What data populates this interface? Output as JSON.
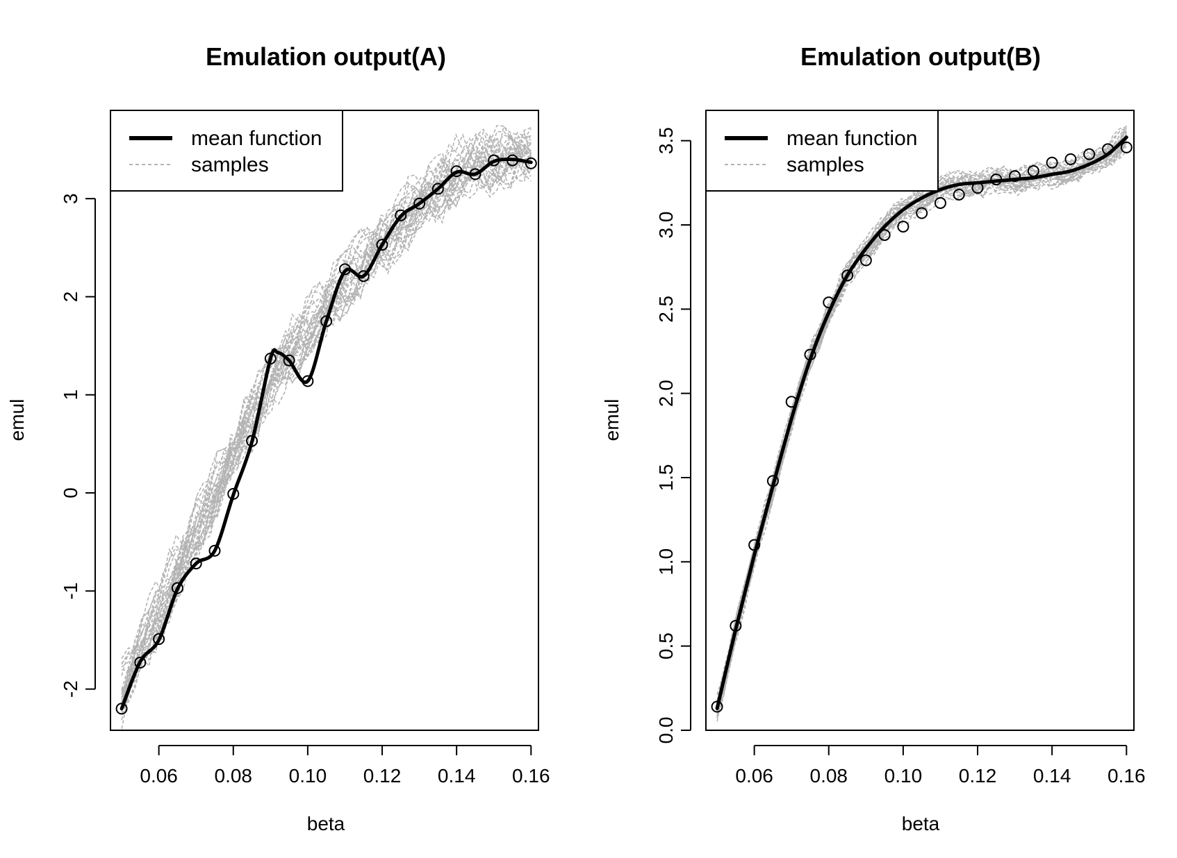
{
  "chart_data": [
    {
      "type": "line",
      "title": "Emulation output(A)",
      "xlabel": "beta",
      "ylabel": "emul",
      "xlim": [
        0.047,
        0.162
      ],
      "ylim": [
        -2.42,
        3.9
      ],
      "x_ticks": [
        0.06,
        0.08,
        0.1,
        0.12,
        0.14,
        0.16
      ],
      "x_tick_labels": [
        "0.06",
        "0.08",
        "0.10",
        "0.12",
        "0.14",
        "0.16"
      ],
      "y_ticks": [
        -2,
        -1,
        0,
        1,
        2,
        3
      ],
      "y_tick_labels": [
        "-2",
        "-1",
        "0",
        "1",
        "2",
        "3"
      ],
      "legend": {
        "position": "top-left",
        "entries": [
          {
            "label": "mean function",
            "style": "solid",
            "color": "#000000"
          },
          {
            "label": "samples",
            "style": "dashed",
            "color": "#b3b3b3"
          }
        ]
      },
      "mean_function": {
        "x": [
          0.05,
          0.055,
          0.06,
          0.065,
          0.07,
          0.075,
          0.08,
          0.085,
          0.09,
          0.092,
          0.095,
          0.1,
          0.105,
          0.11,
          0.115,
          0.12,
          0.125,
          0.13,
          0.135,
          0.14,
          0.145,
          0.15,
          0.155,
          0.16
        ],
        "y": [
          -2.2,
          -1.72,
          -1.5,
          -0.98,
          -0.72,
          -0.59,
          -0.02,
          0.52,
          1.37,
          1.43,
          1.35,
          1.14,
          1.75,
          2.26,
          2.21,
          2.53,
          2.82,
          2.95,
          3.1,
          3.27,
          3.25,
          3.38,
          3.4,
          3.37
        ]
      },
      "observations": {
        "x": [
          0.05,
          0.055,
          0.06,
          0.065,
          0.07,
          0.075,
          0.08,
          0.085,
          0.09,
          0.095,
          0.1,
          0.105,
          0.11,
          0.115,
          0.12,
          0.125,
          0.13,
          0.135,
          0.14,
          0.145,
          0.15,
          0.155,
          0.16
        ],
        "y": [
          -2.2,
          -1.73,
          -1.49,
          -0.97,
          -0.72,
          -0.59,
          -0.01,
          0.53,
          1.37,
          1.35,
          1.14,
          1.75,
          2.28,
          2.21,
          2.53,
          2.83,
          2.95,
          3.1,
          3.28,
          3.25,
          3.39,
          3.39,
          3.36
        ]
      },
      "samples": {
        "count": 30,
        "center_x": [
          0.05,
          0.055,
          0.06,
          0.065,
          0.07,
          0.075,
          0.08,
          0.085,
          0.09,
          0.095,
          0.1,
          0.105,
          0.11,
          0.115,
          0.12,
          0.125,
          0.13,
          0.135,
          0.14,
          0.145,
          0.15,
          0.155,
          0.16
        ],
        "center_y": [
          -2.05,
          -1.6,
          -1.2,
          -0.8,
          -0.4,
          0.0,
          0.4,
          0.8,
          1.15,
          1.4,
          1.65,
          1.9,
          2.15,
          2.35,
          2.55,
          2.75,
          2.95,
          3.1,
          3.25,
          3.35,
          3.42,
          3.45,
          3.45
        ],
        "spread": 0.25
      }
    },
    {
      "type": "line",
      "title": "Emulation output(B)",
      "xlabel": "beta",
      "ylabel": "emul",
      "xlim": [
        0.047,
        0.162
      ],
      "ylim": [
        0.0,
        3.68
      ],
      "x_ticks": [
        0.06,
        0.08,
        0.1,
        0.12,
        0.14,
        0.16
      ],
      "x_tick_labels": [
        "0.06",
        "0.08",
        "0.10",
        "0.12",
        "0.14",
        "0.16"
      ],
      "y_ticks": [
        0.0,
        0.5,
        1.0,
        1.5,
        2.0,
        2.5,
        3.0,
        3.5
      ],
      "y_tick_labels": [
        "0.0",
        "0.5",
        "1.0",
        "1.5",
        "2.0",
        "2.5",
        "3.0",
        "3.5"
      ],
      "legend": {
        "position": "top-left",
        "entries": [
          {
            "label": "mean function",
            "style": "solid",
            "color": "#000000"
          },
          {
            "label": "samples",
            "style": "dashed",
            "color": "#b3b3b3"
          }
        ]
      },
      "mean_function": {
        "x": [
          0.05,
          0.055,
          0.06,
          0.065,
          0.07,
          0.075,
          0.08,
          0.085,
          0.09,
          0.095,
          0.1,
          0.105,
          0.11,
          0.115,
          0.12,
          0.125,
          0.13,
          0.135,
          0.14,
          0.145,
          0.15,
          0.155,
          0.16
        ],
        "y": [
          0.13,
          0.6,
          1.04,
          1.45,
          1.85,
          2.2,
          2.48,
          2.7,
          2.86,
          2.99,
          3.09,
          3.16,
          3.21,
          3.24,
          3.25,
          3.26,
          3.27,
          3.28,
          3.3,
          3.32,
          3.36,
          3.42,
          3.52
        ]
      },
      "observations": {
        "x": [
          0.05,
          0.055,
          0.06,
          0.065,
          0.07,
          0.075,
          0.08,
          0.085,
          0.09,
          0.095,
          0.1,
          0.105,
          0.11,
          0.115,
          0.12,
          0.125,
          0.13,
          0.135,
          0.14,
          0.145,
          0.15,
          0.155,
          0.16
        ],
        "y": [
          0.14,
          0.62,
          1.1,
          1.48,
          1.95,
          2.23,
          2.54,
          2.7,
          2.79,
          2.94,
          2.99,
          3.07,
          3.13,
          3.18,
          3.22,
          3.27,
          3.29,
          3.32,
          3.37,
          3.39,
          3.42,
          3.45,
          3.46
        ]
      },
      "samples": {
        "count": 30,
        "spread": 0.06
      }
    }
  ]
}
